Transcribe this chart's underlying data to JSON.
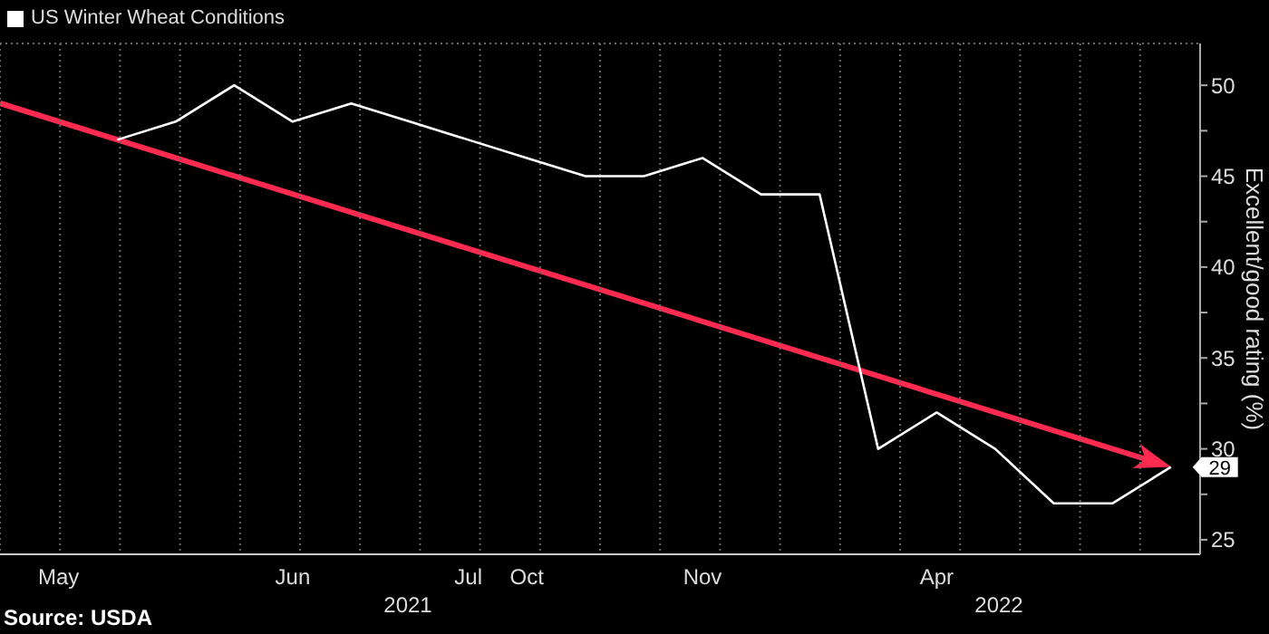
{
  "chart_data": {
    "type": "line",
    "title": null,
    "ylabel": "Excellent/good rating (%)",
    "categories": [
      null,
      "May",
      null,
      null,
      null,
      "Jun",
      null,
      null,
      "Jul",
      "Oct",
      null,
      null,
      "Nov",
      null,
      null,
      null,
      "Apr",
      null,
      null,
      null,
      null
    ],
    "series": [
      {
        "name": "US Winter Wheat Conditions",
        "color": "#ffffff",
        "values": [
          null,
          null,
          47,
          48,
          50,
          48,
          49,
          48,
          47,
          46,
          45,
          45,
          46,
          44,
          44,
          30,
          32,
          30,
          27,
          27,
          29
        ],
        "value_labels": [
          null,
          null,
          null,
          null,
          null,
          null,
          null,
          null,
          null,
          null,
          null,
          null,
          null,
          null,
          null,
          null,
          null,
          null,
          null,
          null,
          "29"
        ]
      }
    ],
    "ylim": [
      24.2,
      52.3
    ],
    "yticks": [
      25,
      {
        "value": 27.5,
        "label": null
      },
      30,
      {
        "value": 32.5,
        "label": null
      },
      35,
      {
        "value": 37.5,
        "label": null
      },
      40,
      {
        "value": 42.5,
        "label": null
      },
      45,
      {
        "value": 47.5,
        "label": null
      },
      50
    ],
    "annotations": [
      "2021",
      "2022",
      "Source: USDA"
    ],
    "grid": true,
    "legend": "top left",
    "marker": "none",
    "line_style": "solid"
  }
}
